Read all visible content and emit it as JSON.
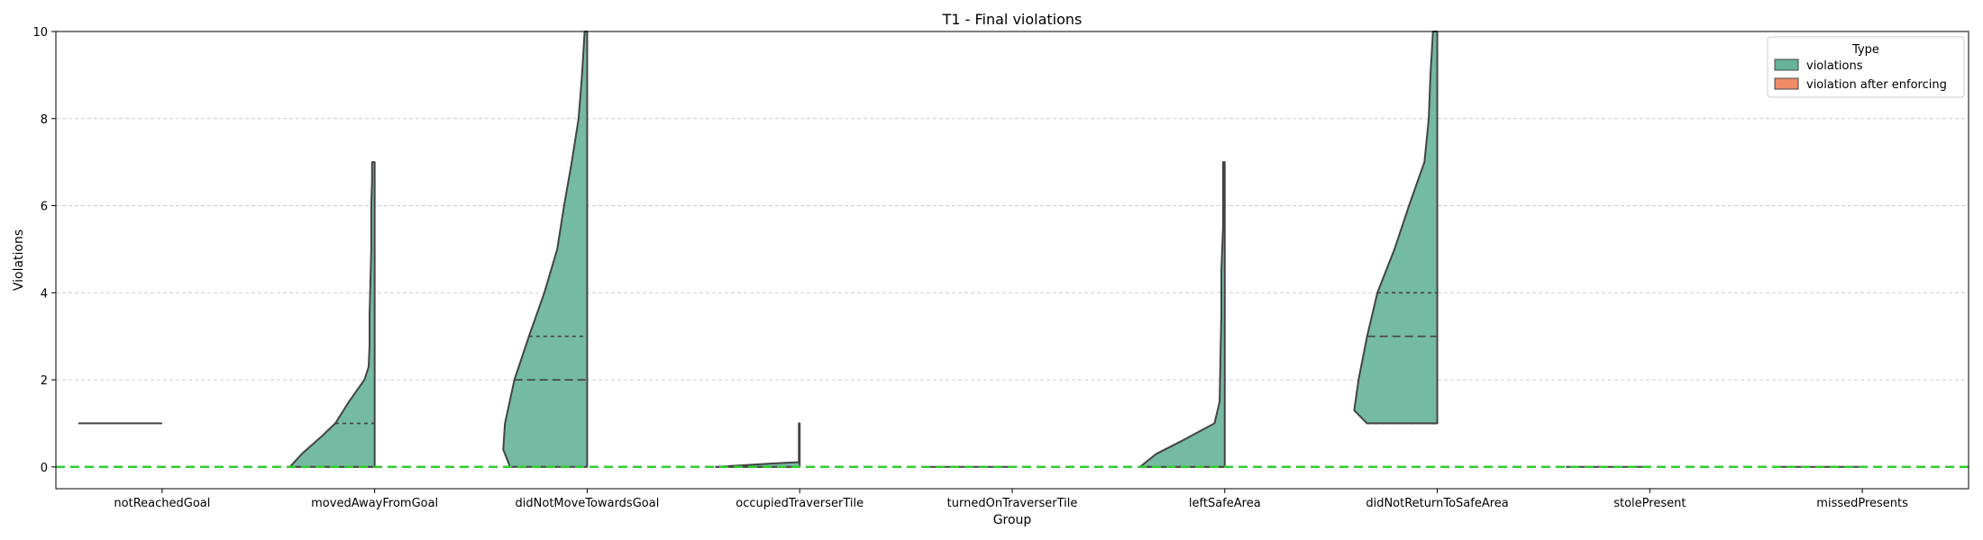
{
  "chart_data": {
    "type": "violin",
    "title": "T1 - Final violations",
    "xlabel": "Group",
    "ylabel": "Violations",
    "ylim": [
      -0.5,
      10
    ],
    "yticks": [
      0,
      2,
      4,
      6,
      8,
      10
    ],
    "grid": "y-dashed",
    "reference_line": {
      "y": 0,
      "color": "#33cc33",
      "style": "dashed"
    },
    "categories": [
      "notReachedGoal",
      "movedAwayFromGoal",
      "didNotMoveTowardsGoal",
      "occupiedTraverserTile",
      "turnedOnTraverserTile",
      "leftSafeArea",
      "didNotReturnToSafeArea",
      "stolePresent",
      "missedPresents"
    ],
    "legend": {
      "title": "Type",
      "position": "top-right",
      "entries": [
        {
          "label": "violations",
          "color": "#66b398"
        },
        {
          "label": "violation after enforcing",
          "color": "#f08b68"
        }
      ]
    },
    "series": [
      {
        "name": "violations",
        "side": "left",
        "groups": [
          {
            "category": "notReachedGoal",
            "min": 1,
            "max": 1,
            "quartiles": [
              1,
              1,
              1
            ],
            "profile": []
          },
          {
            "category": "movedAwayFromGoal",
            "min": 0,
            "max": 7,
            "quartiles": [
              0,
              0,
              1
            ],
            "profile": [
              [
                0,
                0.99
              ],
              [
                0.3,
                0.85
              ],
              [
                0.7,
                0.62
              ],
              [
                1.0,
                0.46
              ],
              [
                1.5,
                0.3
              ],
              [
                2.0,
                0.12
              ],
              [
                2.3,
                0.07
              ],
              [
                2.8,
                0.06
              ],
              [
                3.5,
                0.06
              ],
              [
                4.2,
                0.05
              ],
              [
                5.0,
                0.04
              ],
              [
                6.0,
                0.04
              ],
              [
                6.6,
                0.03
              ],
              [
                7.0,
                0.03
              ]
            ]
          },
          {
            "category": "didNotMoveTowardsGoal",
            "min": 0,
            "max": 10,
            "quartiles": [
              0,
              2,
              3
            ],
            "profile": [
              [
                0,
                0.9
              ],
              [
                0.4,
                0.98
              ],
              [
                1.0,
                0.96
              ],
              [
                2.0,
                0.85
              ],
              [
                3.0,
                0.68
              ],
              [
                4.0,
                0.5
              ],
              [
                5.0,
                0.35
              ],
              [
                6.0,
                0.27
              ],
              [
                7.0,
                0.18
              ],
              [
                8.0,
                0.1
              ],
              [
                9.0,
                0.06
              ],
              [
                10.0,
                0.03
              ]
            ]
          },
          {
            "category": "occupiedTraverserTile",
            "min": 0,
            "max": 1,
            "quartiles": [
              0,
              0,
              0
            ],
            "profile": [
              [
                0,
                0.98
              ],
              [
                0.08,
                0.3
              ],
              [
                0.11,
                0.01
              ],
              [
                1.0,
                0.01
              ]
            ]
          },
          {
            "category": "turnedOnTraverserTile",
            "min": 0,
            "max": 0,
            "quartiles": [
              0,
              0,
              0
            ],
            "profile": []
          },
          {
            "category": "leftSafeArea",
            "min": 0,
            "max": 7,
            "quartiles": [
              0,
              0,
              0
            ],
            "profile": [
              [
                0,
                0.99
              ],
              [
                0.3,
                0.8
              ],
              [
                0.6,
                0.5
              ],
              [
                1.0,
                0.12
              ],
              [
                1.5,
                0.06
              ],
              [
                2.5,
                0.05
              ],
              [
                3.5,
                0.04
              ],
              [
                4.5,
                0.04
              ],
              [
                5.5,
                0.02
              ],
              [
                6.5,
                0.02
              ],
              [
                7.0,
                0.02
              ]
            ]
          },
          {
            "category": "didNotReturnToSafeArea",
            "min": 1,
            "max": 10,
            "quartiles": [
              1,
              3,
              4
            ],
            "profile": [
              [
                1.0,
                0.82
              ],
              [
                1.3,
                0.97
              ],
              [
                2.0,
                0.92
              ],
              [
                3.0,
                0.82
              ],
              [
                4.0,
                0.7
              ],
              [
                5.0,
                0.5
              ],
              [
                6.0,
                0.33
              ],
              [
                7.0,
                0.15
              ],
              [
                8.0,
                0.1
              ],
              [
                9.0,
                0.08
              ],
              [
                10.0,
                0.05
              ]
            ]
          },
          {
            "category": "stolePresent",
            "min": 0,
            "max": 0,
            "quartiles": [
              0,
              0,
              0
            ],
            "profile": []
          },
          {
            "category": "missedPresents",
            "min": 0,
            "max": 0,
            "quartiles": [
              0,
              0,
              0
            ],
            "profile": []
          }
        ]
      },
      {
        "name": "violation after enforcing",
        "side": "right",
        "groups": []
      }
    ]
  }
}
